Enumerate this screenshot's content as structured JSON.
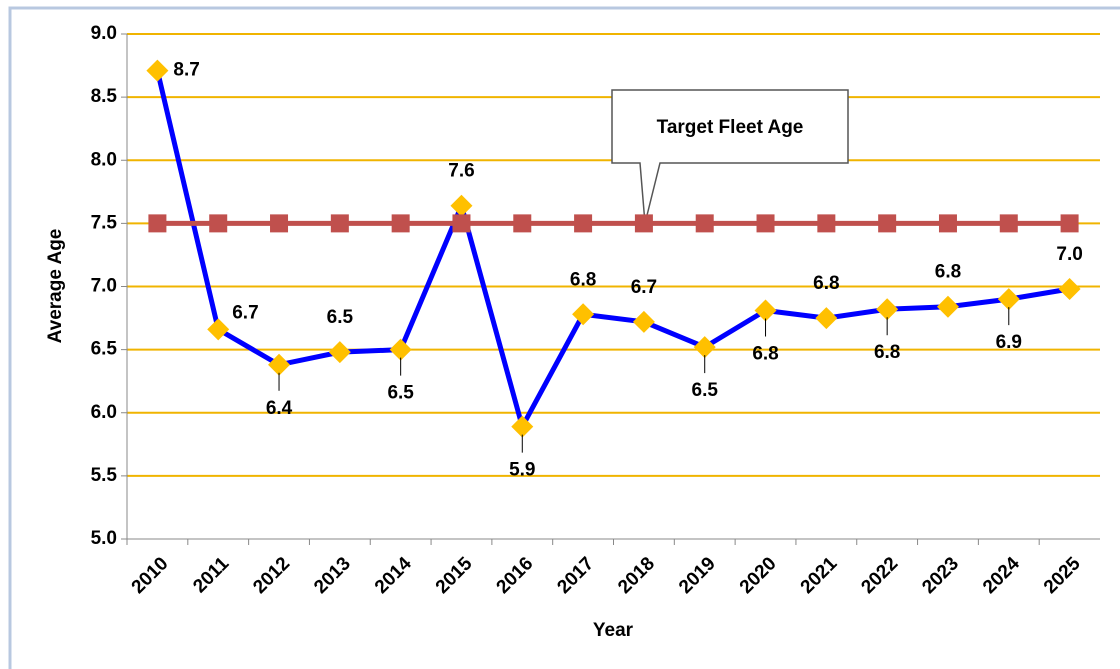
{
  "chart_data": {
    "type": "line",
    "x_label": "Year",
    "y_label": "Average Age",
    "annotation": "Target Fleet Age",
    "categories": [
      "2010",
      "2011",
      "2012",
      "2013",
      "2014",
      "2015",
      "2016",
      "2017",
      "2018",
      "2019",
      "2020",
      "2021",
      "2022",
      "2023",
      "2024",
      "2025"
    ],
    "series": [
      {
        "name": "Average Age",
        "color": "#0000ff",
        "marker_color": "#ffc000",
        "marker": "diamond",
        "values": [
          8.71,
          6.66,
          6.38,
          6.48,
          6.5,
          7.64,
          5.89,
          6.78,
          6.72,
          6.52,
          6.81,
          6.75,
          6.82,
          6.84,
          6.9,
          6.98
        ],
        "value_labels": [
          "8.7",
          "6.7",
          "6.4",
          "6.5",
          "6.5",
          "7.6",
          "5.9",
          "6.8",
          "6.7",
          "6.5",
          "6.8",
          "6.8",
          "6.8",
          "6.8",
          "6.9",
          "7.0"
        ]
      },
      {
        "name": "Target Fleet Age",
        "color": "#c0504d",
        "marker_color": "#c0504d",
        "marker": "square",
        "values": [
          7.5,
          7.5,
          7.5,
          7.5,
          7.5,
          7.5,
          7.5,
          7.5,
          7.5,
          7.5,
          7.5,
          7.5,
          7.5,
          7.5,
          7.5,
          7.5
        ]
      }
    ],
    "ylim": [
      5,
      9
    ],
    "yticks": [
      {
        "value": 5,
        "label": "5.0"
      },
      {
        "value": 5.5,
        "label": "5.5"
      },
      {
        "value": 6,
        "label": "6.0"
      },
      {
        "value": 6.5,
        "label": "6.5"
      },
      {
        "value": 7,
        "label": "7.0"
      },
      {
        "value": 7.5,
        "label": "7.5"
      },
      {
        "value": 8,
        "label": "8.0"
      },
      {
        "value": 8.5,
        "label": "8.5"
      },
      {
        "value": 9,
        "label": "9.0"
      }
    ],
    "grid": true
  }
}
